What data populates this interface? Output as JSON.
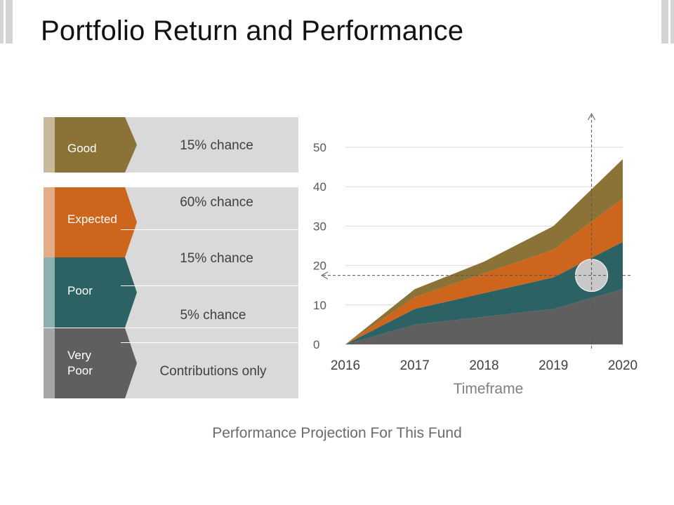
{
  "slide": {
    "title": "Portfolio Return and Performance",
    "caption": "Performance Projection For This Fund"
  },
  "scenarios": [
    {
      "label": "Good",
      "chance": "15% chance",
      "color": "#8b7236",
      "stripe_color": "#c7b99a"
    },
    {
      "label": "Expected",
      "chance": "60% chance",
      "color": "#cd651d",
      "stripe_color": "#e3ad8b"
    },
    {
      "label": "Poor",
      "chance": "15% chance",
      "color": "#2c6264",
      "stripe_color": "#8ab0b0"
    },
    {
      "label": "",
      "chance": "5% chance",
      "color": "#2c6264",
      "stripe_color": "#8ab0b0"
    },
    {
      "label": "Very\nPoor",
      "chance": "Contributions only",
      "color": "#5f5f5f",
      "stripe_color": "#a6a6a6"
    }
  ],
  "chart_data": {
    "type": "area",
    "stacked": true,
    "title": "",
    "xlabel": "Timeframe",
    "ylabel": "",
    "categories": [
      "2016",
      "2017",
      "2018",
      "2019",
      "2020"
    ],
    "x": [
      2016,
      2017,
      2018,
      2019,
      2020
    ],
    "ylim": [
      0,
      50
    ],
    "yticks": [
      "0",
      "10",
      "20",
      "30",
      "40",
      "50"
    ],
    "grid": true,
    "series": [
      {
        "name": "Very Poor",
        "color": "#5f5f5f",
        "points": [
          [
            2016,
            0
          ],
          [
            2017,
            5
          ],
          [
            2018,
            7
          ],
          [
            2019,
            9
          ],
          [
            2020,
            14
          ]
        ]
      },
      {
        "name": "Poor",
        "color": "#2c6264",
        "points": [
          [
            2016,
            0
          ],
          [
            2017,
            4
          ],
          [
            2018,
            6
          ],
          [
            2019,
            8
          ],
          [
            2020,
            12
          ]
        ]
      },
      {
        "name": "Expected",
        "color": "#cd651d",
        "points": [
          [
            2016,
            0
          ],
          [
            2017,
            3
          ],
          [
            2018,
            5
          ],
          [
            2019,
            7
          ],
          [
            2020,
            11
          ]
        ]
      },
      {
        "name": "Good",
        "color": "#8b7236",
        "points": [
          [
            2016,
            0
          ],
          [
            2017,
            2
          ],
          [
            2018,
            3
          ],
          [
            2019,
            6
          ],
          [
            2020,
            10
          ]
        ]
      }
    ],
    "annotations": [
      {
        "type": "marker",
        "shape": "circle",
        "x": 2019.55,
        "y": 17.5,
        "color": "#c8c8c8"
      },
      {
        "type": "dashed-arrow",
        "direction": "up",
        "x": 2019.55
      },
      {
        "type": "dashed-arrow",
        "direction": "left",
        "y": 17.5
      }
    ]
  }
}
